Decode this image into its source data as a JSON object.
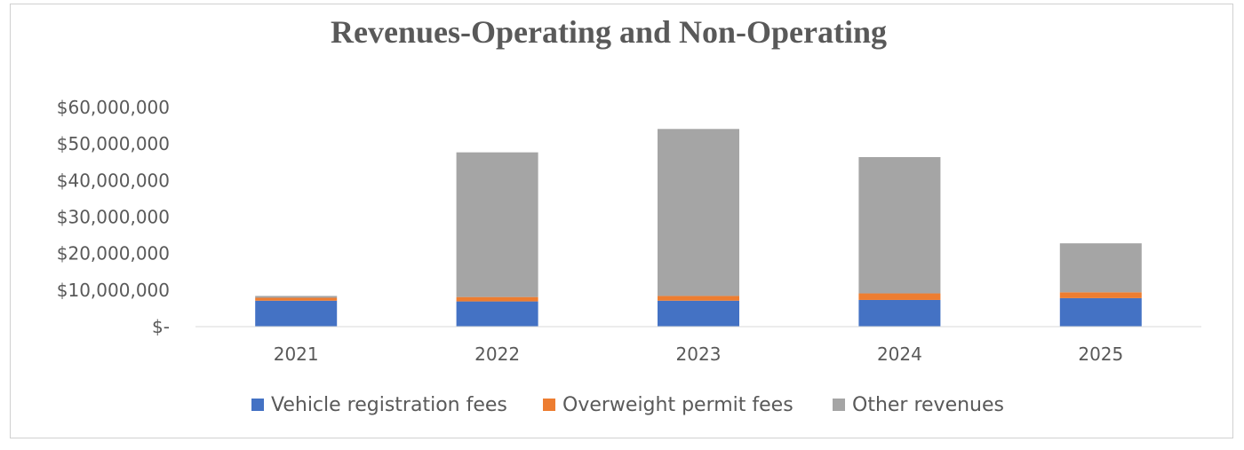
{
  "chart_data": {
    "type": "bar",
    "stacked": true,
    "title": "Revenues-Operating and Non-Operating",
    "xlabel": "",
    "ylabel": "",
    "categories": [
      "2021",
      "2022",
      "2023",
      "2024",
      "2025"
    ],
    "ylim": [
      0,
      60000000
    ],
    "y_ticks": [
      0,
      10000000,
      20000000,
      30000000,
      40000000,
      50000000,
      60000000
    ],
    "y_tick_labels": [
      "$-",
      "$10,000,000",
      "$20,000,000",
      "$30,000,000",
      "$40,000,000",
      "$50,000,000",
      "$60,000,000"
    ],
    "grid": false,
    "legend_position": "bottom",
    "series": [
      {
        "name": "Vehicle registration fees",
        "color": "#4472c4",
        "values": [
          7100000,
          6900000,
          7100000,
          7300000,
          7800000
        ]
      },
      {
        "name": "Overweight permit fees",
        "color": "#ed7d31",
        "values": [
          800000,
          1200000,
          1300000,
          1800000,
          1600000
        ]
      },
      {
        "name": "Other revenues",
        "color": "#a5a5a5",
        "values": [
          500000,
          39600000,
          45700000,
          37300000,
          13400000
        ]
      }
    ]
  }
}
